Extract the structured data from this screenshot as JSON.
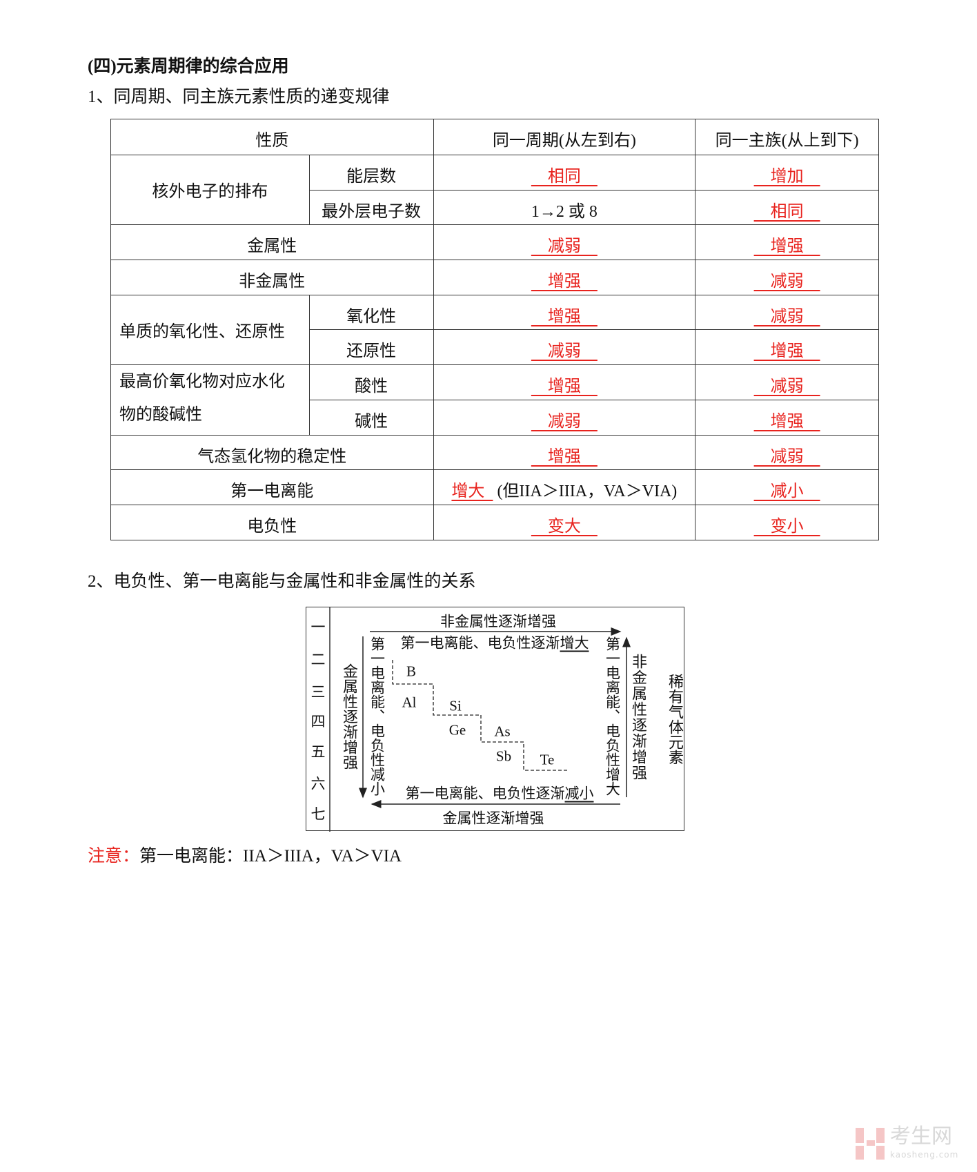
{
  "heading": "(四)元素周期律的综合应用",
  "section1_title": "1、同周期、同主族元素性质的递变规律",
  "table": {
    "headers": [
      "性质",
      "同一周期(从左到右)",
      "同一主族(从上到下)"
    ],
    "rows": [
      {
        "group": "核外电子的排布",
        "property": "能层数",
        "period": "相同",
        "group_trend": "增加"
      },
      {
        "property": "最外层电子数",
        "period_text": "1→2 或 8",
        "group_trend": "相同"
      },
      {
        "property": "金属性",
        "period": "减弱",
        "group_trend": "增强"
      },
      {
        "property": "非金属性",
        "period": "增强",
        "group_trend": "减弱"
      },
      {
        "group": "单质的氧化性、还原性",
        "property": "氧化性",
        "period": "增强",
        "group_trend": "减弱"
      },
      {
        "property": "还原性",
        "period": "减弱",
        "group_trend": "增强"
      },
      {
        "group_line1": "最高价氧化物对应水化",
        "group_line2": "物的酸碱性",
        "property": "酸性",
        "period": "增强",
        "group_trend": "减弱"
      },
      {
        "property": "碱性",
        "period": "减弱",
        "group_trend": "增强"
      },
      {
        "property": "气态氢化物的稳定性",
        "period": "增强",
        "group_trend": "减弱"
      },
      {
        "property": "第一电离能",
        "period": "增大",
        "period_note": "(但IIA＞IIIA，VA＞VIA)",
        "group_trend": "减小"
      },
      {
        "property": "电负性",
        "period": "变大",
        "group_trend": "变小"
      }
    ]
  },
  "section2_title": "2、电负性、第一电离能与金属性和非金属性的关系",
  "diagram": {
    "periods": [
      "一",
      "二",
      "三",
      "四",
      "五",
      "六",
      "七"
    ],
    "top_label": "非金属性逐渐增强",
    "top_inner_prefix": "第一电离能、电负性逐渐",
    "top_inner_suffix": "增大",
    "bottom_inner_prefix": "第一电离能、电负性逐渐",
    "bottom_inner_suffix": "减小",
    "bottom_label": "金属性逐渐增强",
    "left_outer": "金属性逐渐增强",
    "left_inner": "第一电离能、电负性减小",
    "right_inner": "第一电离能、电负性增大",
    "right_outer": "非金属性逐渐增强",
    "noble": "稀有气体元素",
    "elements": [
      "B",
      "Al",
      "Si",
      "Ge",
      "As",
      "Sb",
      "Te"
    ]
  },
  "note": {
    "label": "注意：",
    "text": "第一电离能：IIA＞IIIA，VA＞VIA"
  },
  "watermark": {
    "cn": "考生网",
    "en": "kaosheng.com"
  },
  "colors": {
    "answer": "#e8231e",
    "note_label": "#e8231e",
    "watermark": "#f5c6c6"
  }
}
